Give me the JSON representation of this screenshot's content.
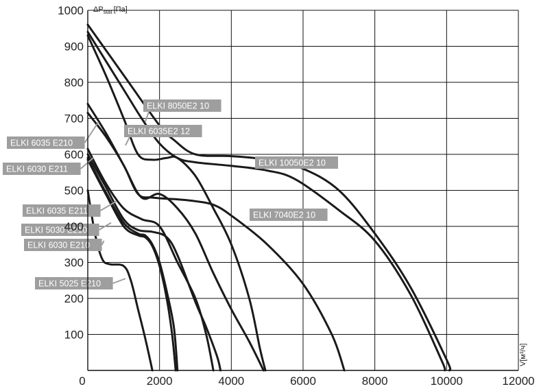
{
  "chart_data": {
    "type": "line",
    "y_axis_label": {
      "main": "ΔP",
      "sub": "stat",
      "unit": "[Па]"
    },
    "x_axis_label": "V[м³/ч]",
    "xlim": [
      0,
      12000
    ],
    "ylim": [
      0,
      1000
    ],
    "x_ticks": [
      0,
      2000,
      4000,
      6000,
      8000,
      10000,
      12000
    ],
    "x_tick_labels": [
      "0",
      "2000",
      "4000",
      "6000",
      "8000",
      "10000",
      "12000"
    ],
    "y_ticks": [
      100,
      200,
      300,
      400,
      500,
      600,
      700,
      800,
      900,
      1000
    ],
    "y_tick_labels": [
      "100",
      "200",
      "300",
      "400",
      "500",
      "600",
      "700",
      "800",
      "900",
      "1000"
    ],
    "grid": true,
    "series": [
      {
        "name": "ELKI 10050E2 10",
        "label_side": "right",
        "points": [
          [
            0,
            960
          ],
          [
            1000,
            820
          ],
          [
            2000,
            680
          ],
          [
            2400,
            640
          ],
          [
            3000,
            600
          ],
          [
            4000,
            595
          ],
          [
            5000,
            585
          ],
          [
            6000,
            560
          ],
          [
            7000,
            500
          ],
          [
            8000,
            380
          ],
          [
            9000,
            230
          ],
          [
            10000,
            30
          ],
          [
            10080,
            0
          ]
        ]
      },
      {
        "name": "ELKI 8050E2 10",
        "label_side": "right",
        "points": [
          [
            0,
            940
          ],
          [
            1000,
            780
          ],
          [
            1500,
            700
          ],
          [
            2000,
            630
          ],
          [
            2500,
            590
          ],
          [
            3000,
            578
          ],
          [
            4000,
            568
          ],
          [
            5000,
            555
          ],
          [
            5800,
            530
          ],
          [
            7000,
            445
          ],
          [
            8000,
            360
          ],
          [
            9000,
            210
          ],
          [
            9850,
            30
          ],
          [
            9950,
            0
          ]
        ]
      },
      {
        "name": "ELKI 6035E2 12",
        "label_side": "right",
        "points": [
          [
            0,
            930
          ],
          [
            500,
            820
          ],
          [
            1000,
            700
          ],
          [
            1400,
            600
          ],
          [
            1800,
            585
          ],
          [
            2200,
            590
          ],
          [
            2500,
            590
          ],
          [
            3000,
            540
          ],
          [
            3500,
            450
          ],
          [
            4000,
            350
          ],
          [
            4500,
            200
          ],
          [
            4800,
            60
          ],
          [
            4950,
            0
          ]
        ]
      },
      {
        "name": "ELKI 6035 E210",
        "label_side": "left",
        "points": [
          [
            0,
            740
          ],
          [
            500,
            660
          ],
          [
            1000,
            570
          ],
          [
            1500,
            480
          ],
          [
            2000,
            490
          ],
          [
            2500,
            450
          ],
          [
            3000,
            380
          ],
          [
            3500,
            270
          ],
          [
            4000,
            170
          ],
          [
            4500,
            80
          ],
          [
            4900,
            0
          ]
        ]
      },
      {
        "name": "ELKI 7040E2 10",
        "label_side": "right",
        "points": [
          [
            0,
            715
          ],
          [
            500,
            650
          ],
          [
            1000,
            570
          ],
          [
            1400,
            490
          ],
          [
            1800,
            480
          ],
          [
            2500,
            475
          ],
          [
            3000,
            470
          ],
          [
            3500,
            460
          ],
          [
            4000,
            430
          ],
          [
            5000,
            350
          ],
          [
            6000,
            240
          ],
          [
            6800,
            100
          ],
          [
            7150,
            0
          ]
        ]
      },
      {
        "name": "ELKI 6030 E211",
        "label_side": "left",
        "points": [
          [
            0,
            615
          ],
          [
            500,
            520
          ],
          [
            1000,
            450
          ],
          [
            1500,
            420
          ],
          [
            2000,
            400
          ],
          [
            2500,
            300
          ],
          [
            3000,
            200
          ],
          [
            3300,
            100
          ],
          [
            3500,
            0
          ]
        ]
      },
      {
        "name": "ELKI 6035 E211",
        "label_side": "left",
        "points": [
          [
            0,
            600
          ],
          [
            500,
            510
          ],
          [
            1000,
            420
          ],
          [
            1400,
            390
          ],
          [
            1800,
            385
          ],
          [
            2200,
            370
          ],
          [
            2500,
            320
          ],
          [
            3000,
            190
          ],
          [
            3300,
            120
          ],
          [
            3600,
            40
          ],
          [
            3700,
            0
          ]
        ]
      },
      {
        "name": "ELKI 5030 E210",
        "label_side": "left",
        "points": [
          [
            0,
            590
          ],
          [
            500,
            495
          ],
          [
            1000,
            410
          ],
          [
            1400,
            380
          ],
          [
            1600,
            375
          ],
          [
            1800,
            350
          ],
          [
            2000,
            300
          ],
          [
            2200,
            220
          ],
          [
            2400,
            120
          ],
          [
            2500,
            0
          ]
        ]
      },
      {
        "name": "ELKI 6030 E210",
        "label_side": "left",
        "points": [
          [
            0,
            585
          ],
          [
            500,
            490
          ],
          [
            1000,
            400
          ],
          [
            1400,
            375
          ],
          [
            1600,
            370
          ],
          [
            1800,
            345
          ],
          [
            2000,
            290
          ],
          [
            2200,
            200
          ],
          [
            2350,
            100
          ],
          [
            2450,
            0
          ]
        ]
      },
      {
        "name": "ELKI 5025 E210",
        "label_side": "left",
        "points": [
          [
            0,
            500
          ],
          [
            200,
            380
          ],
          [
            400,
            310
          ],
          [
            600,
            295
          ],
          [
            1000,
            290
          ],
          [
            1200,
            250
          ],
          [
            1400,
            170
          ],
          [
            1600,
            90
          ],
          [
            1800,
            0
          ]
        ]
      }
    ],
    "callouts": [
      {
        "series": "ELKI 8050E2 10",
        "at": [
          1600,
          690
        ]
      },
      {
        "series": "ELKI 6035E2 12",
        "at": [
          1050,
          625
        ]
      },
      {
        "series": "ELKI 10050E2 10",
        "at": [
          4900,
          570
        ]
      },
      {
        "series": "ELKI 7040E2 10",
        "at": [
          4650,
          425
        ]
      },
      {
        "series": "ELKI 6035 E210",
        "at": [
          300,
          690
        ]
      },
      {
        "series": "ELKI 6030 E211",
        "at": [
          150,
          590
        ]
      },
      {
        "series": "ELKI 6035 E211",
        "at": [
          800,
          470
        ]
      },
      {
        "series": "ELKI 5030 E210",
        "at": [
          650,
          410
        ]
      },
      {
        "series": "ELKI 6030 E210",
        "at": [
          450,
          360
        ]
      },
      {
        "series": "ELKI 5025 E210",
        "at": [
          1050,
          255
        ]
      }
    ]
  }
}
